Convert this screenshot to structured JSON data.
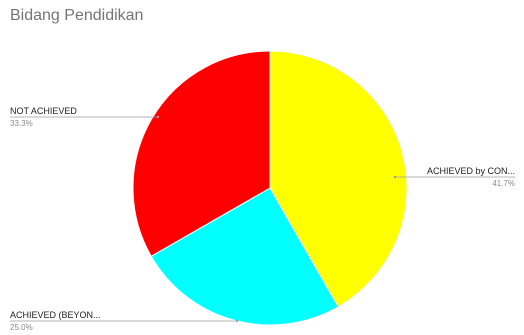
{
  "chart_data": {
    "type": "pie",
    "title": "Bidang Pendidikan",
    "slices": [
      {
        "label": "ACHIEVED by CON...",
        "value": 41.7,
        "percent_label": "41.7%",
        "color": "#ffff00"
      },
      {
        "label": "ACHIEVED (BEYON...",
        "value": 25.0,
        "percent_label": "25.0%",
        "color": "#00ffff"
      },
      {
        "label": "NOT ACHIEVED",
        "value": 33.3,
        "percent_label": "33.3%",
        "color": "#ff0000"
      }
    ],
    "start_angle": "top (12 o'clock)",
    "direction": "clockwise",
    "legend": "none (slice labels with leader lines)"
  }
}
